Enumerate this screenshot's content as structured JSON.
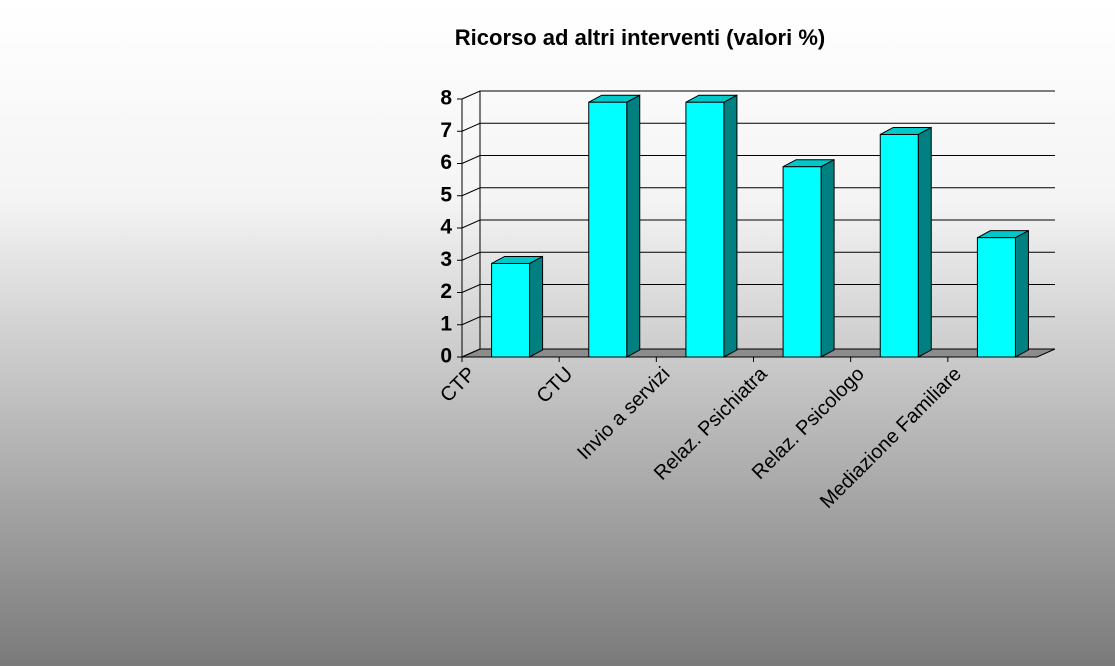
{
  "chart_data": {
    "type": "bar",
    "title": "Ricorso ad altri interventi (valori %)",
    "categories": [
      "CTP",
      "CTU",
      "Invio a servizi",
      "Relaz. Psichiatra",
      "Relaz. Psicologo",
      "Mediazione Familiare"
    ],
    "values": [
      2.9,
      7.9,
      7.9,
      5.9,
      6.9,
      3.7
    ],
    "color": "#00ffff",
    "ylim": [
      0,
      8
    ],
    "yticks": [
      0,
      1,
      2,
      3,
      4,
      5,
      6,
      7,
      8
    ],
    "grid": true
  }
}
